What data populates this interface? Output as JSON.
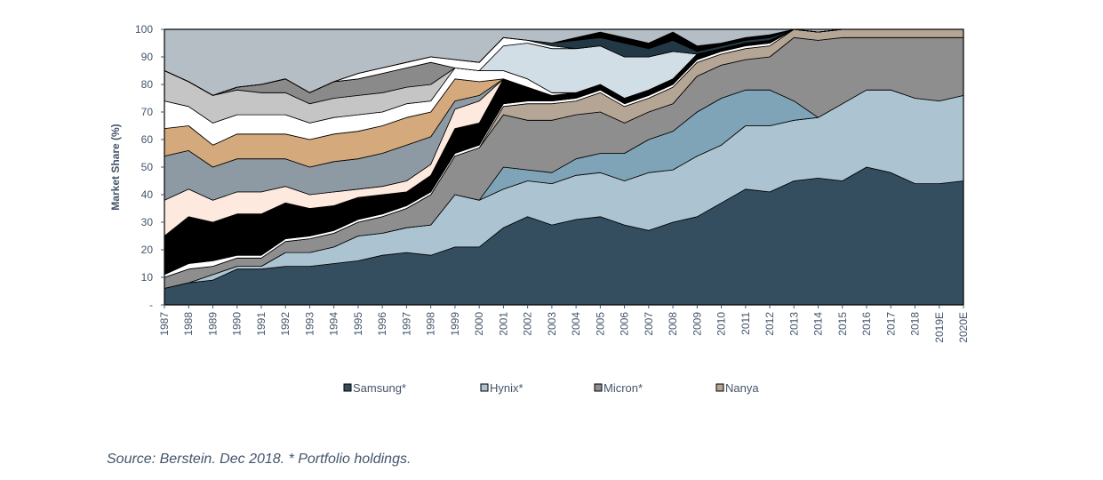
{
  "chart_data": {
    "type": "area",
    "stacked": true,
    "ylabel": "Market Share (%)",
    "ylim": [
      0,
      100
    ],
    "y_ticks": [
      "-",
      "10",
      "20",
      "30",
      "40",
      "50",
      "60",
      "70",
      "80",
      "90",
      "100"
    ],
    "x": [
      "1987",
      "1988",
      "1989",
      "1990",
      "1991",
      "1992",
      "1993",
      "1994",
      "1995",
      "1996",
      "1997",
      "1998",
      "1999",
      "2000",
      "2001",
      "2002",
      "2003",
      "2004",
      "2005",
      "2006",
      "2007",
      "2008",
      "2009",
      "2010",
      "2011",
      "2012",
      "2013",
      "2014",
      "2015",
      "2016",
      "2017",
      "2018",
      "2019E",
      "2020E"
    ],
    "background_color": "#b6bec5",
    "legend_position": "bottom",
    "series": [
      {
        "name": "Samsung*",
        "color": "#344e60",
        "legend": true,
        "values": [
          6,
          8,
          9,
          13,
          13,
          14,
          14,
          15,
          16,
          18,
          19,
          18,
          21,
          21,
          28,
          32,
          29,
          31,
          32,
          29,
          27,
          30,
          32,
          37,
          42,
          41,
          45,
          46,
          45,
          50,
          48,
          44,
          44,
          45
        ]
      },
      {
        "name": "Hynix*",
        "color": "#acc4d2",
        "legend": true,
        "values": [
          0,
          0,
          2,
          1,
          1,
          5,
          5,
          6,
          9,
          8,
          9,
          11,
          19,
          17,
          14,
          13,
          15,
          16,
          16,
          16,
          21,
          19,
          22,
          21,
          23,
          24,
          22,
          22,
          28,
          28,
          30,
          31,
          30,
          31
        ]
      },
      {
        "color": "#7fa4b8",
        "legend": false,
        "values": [
          0,
          0,
          0,
          0,
          0,
          0,
          0,
          0,
          0,
          0,
          0,
          0,
          0,
          0,
          8,
          4,
          4,
          6,
          7,
          10,
          12,
          14,
          16,
          17,
          13,
          13,
          7,
          0,
          0,
          0,
          0,
          0,
          0,
          0
        ]
      },
      {
        "name": "Micron*",
        "color": "#8e8e8e",
        "legend": true,
        "values": [
          4,
          5,
          3,
          3,
          3,
          4,
          5,
          5,
          5,
          6,
          7,
          11,
          14,
          19,
          19,
          18,
          19,
          16,
          15,
          11,
          10,
          10,
          13,
          12,
          11,
          12,
          23,
          28,
          24,
          19,
          19,
          22,
          23,
          21
        ]
      },
      {
        "name": "Nanya",
        "color": "#b5a595",
        "legend": true,
        "values": [
          0,
          0,
          0,
          0,
          0,
          0,
          0,
          0,
          0,
          0,
          0,
          0,
          0,
          0,
          3,
          6,
          6,
          5,
          7,
          6,
          5,
          6,
          5,
          4,
          4,
          4,
          3,
          3,
          3,
          3,
          3,
          3,
          3,
          3
        ]
      },
      {
        "color": "#ffffff",
        "legend": false,
        "values": [
          1,
          2,
          2,
          1,
          1,
          1,
          1,
          1,
          1,
          1,
          1,
          1,
          1,
          1,
          1,
          1,
          1,
          1,
          1,
          1,
          1,
          1,
          1,
          1,
          1,
          1,
          0,
          0,
          0,
          0,
          0,
          0,
          0,
          0
        ]
      },
      {
        "color": "#000000",
        "legend": false,
        "values": [
          14,
          17,
          14,
          15,
          15,
          13,
          10,
          9,
          8,
          7,
          5,
          6,
          9,
          8,
          9,
          5,
          2,
          2,
          2,
          2,
          2,
          2,
          2,
          1,
          1,
          1,
          0,
          0,
          0,
          0,
          0,
          0,
          0,
          0
        ]
      },
      {
        "color": "#fde9de",
        "legend": false,
        "values": [
          13,
          10,
          8,
          8,
          8,
          6,
          5,
          5,
          3,
          3,
          4,
          4,
          7,
          8,
          0,
          0,
          0,
          0,
          0,
          0,
          0,
          0,
          0,
          0,
          0,
          0,
          0,
          0,
          0,
          0,
          0,
          0,
          0,
          0
        ]
      },
      {
        "color": "#8e9aa3",
        "legend": false,
        "values": [
          16,
          14,
          12,
          12,
          12,
          10,
          10,
          11,
          11,
          12,
          13,
          10,
          3,
          2,
          0,
          0,
          0,
          0,
          0,
          0,
          0,
          0,
          0,
          0,
          0,
          0,
          0,
          0,
          0,
          0,
          0,
          0,
          0,
          0
        ]
      },
      {
        "color": "#d4a97b",
        "legend": false,
        "values": [
          10,
          9,
          8,
          9,
          9,
          9,
          10,
          10,
          10,
          10,
          10,
          9,
          8,
          5,
          0,
          0,
          0,
          0,
          0,
          0,
          0,
          0,
          0,
          0,
          0,
          0,
          0,
          0,
          0,
          0,
          0,
          0,
          0,
          0
        ]
      },
      {
        "color": "#ffffff",
        "legend": false,
        "values": [
          10,
          7,
          8,
          7,
          7,
          7,
          6,
          6,
          6,
          5,
          5,
          4,
          4,
          4,
          3,
          3,
          1,
          0,
          0,
          0,
          0,
          0,
          0,
          0,
          0,
          0,
          0,
          0,
          0,
          0,
          0,
          0,
          0,
          0
        ]
      },
      {
        "color": "#c5c5c5",
        "legend": false,
        "values": [
          11,
          9,
          10,
          9,
          8,
          8,
          7,
          7,
          7,
          7,
          6,
          6,
          0,
          0,
          0,
          0,
          0,
          0,
          0,
          0,
          0,
          0,
          0,
          0,
          0,
          0,
          0,
          0,
          0,
          0,
          0,
          0,
          0,
          0
        ]
      },
      {
        "color": "#8a8a8a",
        "legend": false,
        "values": [
          0,
          0,
          0,
          1,
          3,
          5,
          4,
          6,
          6,
          7,
          7,
          8,
          0,
          0,
          0,
          0,
          0,
          0,
          0,
          0,
          0,
          0,
          0,
          0,
          0,
          0,
          0,
          0,
          0,
          0,
          0,
          0,
          0,
          0
        ]
      },
      {
        "color": "#d2dee6",
        "legend": false,
        "values": [
          0,
          0,
          0,
          0,
          0,
          0,
          0,
          0,
          0,
          0,
          0,
          0,
          0,
          0,
          9,
          13,
          16,
          16,
          14,
          15,
          12,
          10,
          0,
          0,
          0,
          0,
          0,
          0,
          0,
          0,
          0,
          0,
          0,
          0
        ]
      },
      {
        "color": "#ffffff",
        "legend": false,
        "values": [
          0,
          0,
          0,
          0,
          0,
          0,
          0,
          0,
          2,
          2,
          2,
          2,
          3,
          3,
          3,
          1,
          1,
          0,
          0,
          0,
          0,
          0,
          0,
          0,
          0,
          0,
          0,
          0,
          0,
          0,
          0,
          0,
          0,
          0
        ]
      },
      {
        "color": "#233845",
        "legend": false,
        "values": [
          0,
          0,
          0,
          0,
          0,
          0,
          0,
          0,
          0,
          0,
          0,
          0,
          0,
          0,
          0,
          0,
          1,
          3,
          3,
          5,
          3,
          4,
          1,
          1,
          1,
          1,
          0,
          0,
          0,
          0,
          0,
          0,
          0,
          0
        ]
      },
      {
        "color": "#000000",
        "legend": false,
        "values": [
          0,
          0,
          0,
          0,
          0,
          0,
          0,
          0,
          0,
          0,
          0,
          0,
          0,
          0,
          0,
          0,
          0,
          1,
          2,
          2,
          2,
          3,
          2,
          1,
          1,
          1,
          0,
          0,
          0,
          0,
          0,
          0,
          0,
          0
        ]
      }
    ]
  },
  "source_note": "Source: Berstein. Dec 2018. * Portfolio holdings."
}
